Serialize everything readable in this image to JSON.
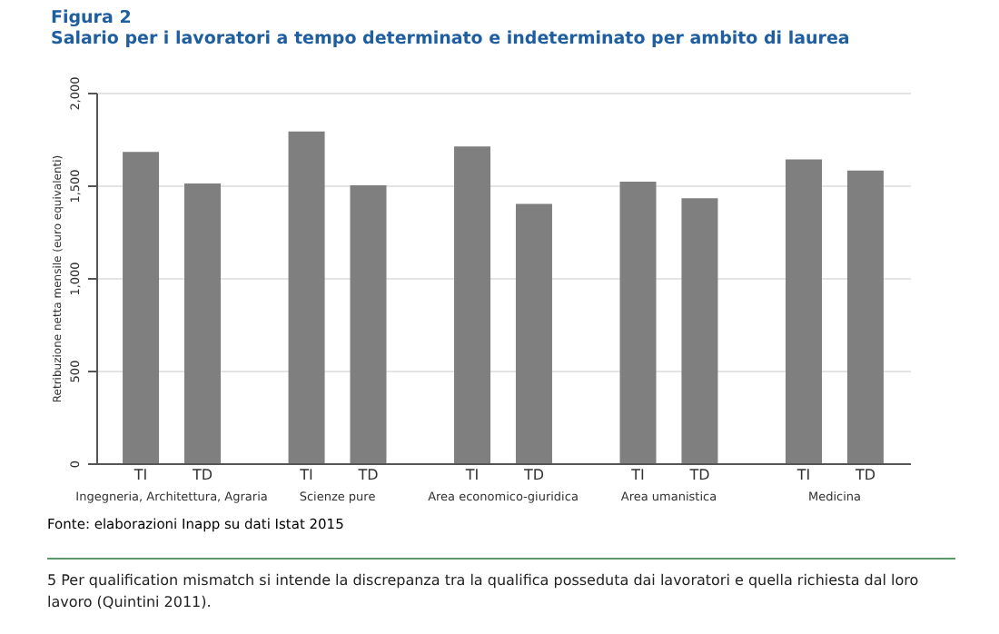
{
  "chart_data": {
    "type": "bar",
    "title": "Figura 2",
    "subtitle": "Salario per i lavoratori a tempo determinato e indeterminato per ambito di laurea",
    "ylabel": "Retribuzione netta mensile (euro equivalenti)",
    "categories": [
      "Ingegneria, Architettura, Agraria",
      "Scienze pure",
      "Area economico-giuridica",
      "Area umanistica",
      "Medicina"
    ],
    "series": [
      {
        "name": "TI",
        "color": "#7f7f7f",
        "values": [
          1680,
          1790,
          1710,
          1520,
          1640
        ]
      },
      {
        "name": "TD",
        "color": "#7f7f7f",
        "values": [
          1510,
          1500,
          1400,
          1430,
          1580
        ]
      }
    ],
    "ylim": [
      0,
      2000
    ],
    "yticks": [
      0,
      {
        "value": 500,
        "label": "500"
      },
      {
        "value": 1000,
        "label": "1,000"
      },
      {
        "value": 1500,
        "label": "1,500"
      },
      {
        "value": 2000,
        "label": "2,000"
      }
    ],
    "grid": "y",
    "annotations": [
      "Fonte: elaborazioni Inapp su dati Istat 2015",
      "5 Per qualification mismatch si intende la discrepanza tra la qualifica posseduta dai lavoratori e quella richiesta dal loro lavoro (Quintini 2011)."
    ]
  }
}
